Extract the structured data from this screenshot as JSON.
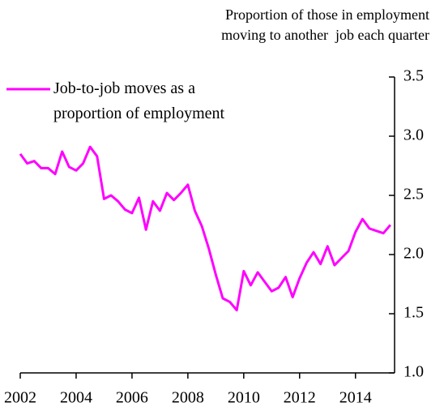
{
  "chart_data": {
    "type": "line",
    "title": [
      "Proportion of those in employment",
      "moving to another  job each quarter"
    ],
    "x": [
      2002,
      2002.25,
      2002.5,
      2002.75,
      2003,
      2003.25,
      2003.5,
      2003.75,
      2004,
      2004.25,
      2004.5,
      2004.75,
      2005,
      2005.25,
      2005.5,
      2005.75,
      2006,
      2006.25,
      2006.5,
      2006.75,
      2007,
      2007.25,
      2007.5,
      2007.75,
      2008,
      2008.25,
      2008.5,
      2008.75,
      2009,
      2009.25,
      2009.5,
      2009.75,
      2010,
      2010.25,
      2010.5,
      2010.75,
      2011,
      2011.25,
      2011.5,
      2011.75,
      2012,
      2012.25,
      2012.5,
      2012.75,
      2013,
      2013.25,
      2013.5,
      2013.75,
      2014,
      2014.25,
      2014.5,
      2014.75,
      2015,
      2015.25
    ],
    "series": [
      {
        "name": "Job-to-job moves as a proportion of employment",
        "color": "#ff00ff",
        "values": [
          2.85,
          2.77,
          2.79,
          2.73,
          2.73,
          2.68,
          2.87,
          2.74,
          2.71,
          2.77,
          2.91,
          2.83,
          2.47,
          2.5,
          2.45,
          2.38,
          2.35,
          2.48,
          2.21,
          2.45,
          2.37,
          2.52,
          2.46,
          2.52,
          2.59,
          2.37,
          2.24,
          2.05,
          1.83,
          1.63,
          1.6,
          1.53,
          1.86,
          1.74,
          1.85,
          1.77,
          1.69,
          1.72,
          1.81,
          1.64,
          1.8,
          1.93,
          2.02,
          1.92,
          2.07,
          1.91,
          1.97,
          2.03,
          2.19,
          2.3,
          2.22,
          2.2,
          2.18,
          2.25
        ]
      }
    ],
    "xlim": [
      2002,
      2015.4
    ],
    "xticks": [
      2002,
      2004,
      2006,
      2008,
      2010,
      2012,
      2014
    ],
    "ylim": [
      1,
      3.5
    ],
    "yticks": [
      {
        "value": 1,
        "label": "1.0"
      },
      1.5,
      {
        "value": 2,
        "label": "2.0"
      },
      2.5,
      {
        "value": 3,
        "label": "3.0"
      },
      3.5
    ],
    "y_axis_side": "right",
    "legend": "top-left"
  }
}
